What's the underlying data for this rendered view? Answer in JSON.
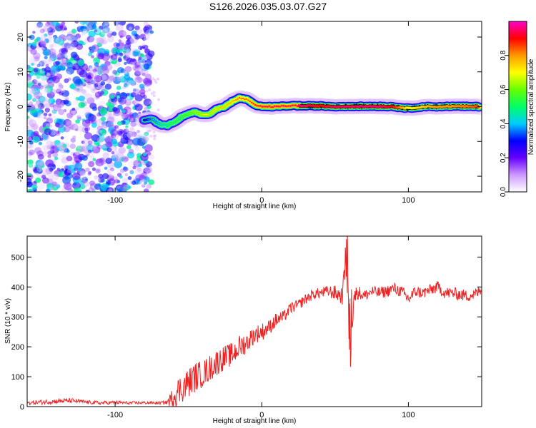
{
  "figure_title": "S126.2026.035.03.07.G27",
  "chart_data": [
    {
      "type": "heatmap",
      "name": "spectrogram",
      "title": "S126.2026.035.03.07.G27",
      "xlabel": "Height of straight line (km)",
      "ylabel": "Frequency (Hz)",
      "xlim": [
        -160,
        150
      ],
      "ylim": [
        -24.5,
        24.5
      ],
      "xticks": [
        -100,
        0,
        100
      ],
      "yticks": [
        -20,
        -10,
        0,
        10,
        20
      ],
      "colorbar": {
        "label": "Normalized spectral amplitude",
        "range": [
          0,
          1
        ],
        "ticks": [
          0.0,
          0.2,
          0.4,
          0.6,
          0.8
        ],
        "tick_labels": [
          "0.0",
          "0.2",
          "0.4",
          "0.6",
          "0.8"
        ],
        "colormap": [
          "#ffffff",
          "#cc99ff",
          "#6600ff",
          "#0000ff",
          "#00ccff",
          "#00ff66",
          "#66ff00",
          "#ffff00",
          "#ff9900",
          "#ff0000",
          "#ff00cc"
        ]
      },
      "noise_region": {
        "x": [
          -160,
          -75
        ],
        "freq": [
          -24.5,
          24.5
        ],
        "amplitude_range": [
          0.0,
          0.15
        ]
      },
      "ridge": {
        "x": [
          -80,
          -75,
          -70,
          -65,
          -60,
          -55,
          -50,
          -45,
          -40,
          -35,
          -30,
          -25,
          -20,
          -15,
          -10,
          -5,
          0,
          10,
          20,
          30,
          40,
          50,
          60,
          70,
          80,
          90,
          100,
          110,
          120,
          130,
          148
        ],
        "freq": [
          -4,
          -3.5,
          -5,
          -5.5,
          -4.5,
          -3,
          -2,
          -1.5,
          -2.5,
          -2,
          -0.5,
          0,
          1.5,
          2.5,
          2,
          0.5,
          0,
          0,
          0.3,
          0.2,
          0.2,
          0,
          0.1,
          0.1,
          0.1,
          0,
          -0.5,
          0,
          0,
          0.1,
          0
        ],
        "amplitude": [
          0.3,
          0.4,
          0.45,
          0.5,
          0.55,
          0.55,
          0.6,
          0.65,
          0.7,
          0.7,
          0.75,
          0.75,
          0.8,
          0.85,
          0.85,
          0.9,
          0.95,
          0.95,
          0.95,
          0.95,
          0.9,
          0.95,
          0.95,
          0.95,
          0.95,
          0.9,
          0.7,
          0.75,
          0.8,
          0.8,
          0.85
        ]
      }
    },
    {
      "type": "line",
      "name": "snr",
      "xlabel": "Height of straight line (km)",
      "ylabel": "SNR (10 * v/v)",
      "xlim": [
        -160,
        150
      ],
      "ylim": [
        0,
        570
      ],
      "xticks": [
        -100,
        0,
        100
      ],
      "yticks": [
        0,
        100,
        200,
        300,
        400,
        500
      ],
      "color": "#ee2222",
      "series": [
        {
          "name": "SNR",
          "x": [
            -160,
            -150,
            -140,
            -130,
            -120,
            -110,
            -100,
            -90,
            -80,
            -70,
            -65,
            -62,
            -60,
            -55,
            -50,
            -45,
            -40,
            -35,
            -30,
            -25,
            -20,
            -15,
            -10,
            -5,
            0,
            5,
            10,
            15,
            20,
            25,
            30,
            35,
            40,
            45,
            50,
            55,
            58,
            60,
            62,
            65,
            70,
            75,
            80,
            85,
            90,
            95,
            100,
            105,
            110,
            115,
            120,
            125,
            130,
            135,
            140,
            145,
            150
          ],
          "y": [
            12,
            15,
            18,
            20,
            15,
            12,
            14,
            12,
            13,
            12,
            14,
            20,
            40,
            60,
            80,
            100,
            110,
            130,
            150,
            165,
            175,
            200,
            215,
            240,
            250,
            265,
            290,
            300,
            330,
            340,
            360,
            375,
            380,
            385,
            380,
            370,
            560,
            190,
            350,
            385,
            370,
            385,
            380,
            385,
            395,
            385,
            360,
            385,
            380,
            390,
            400,
            380,
            380,
            375,
            370,
            375,
            390
          ],
          "noise_amplitude": [
            6,
            8,
            8,
            8,
            6,
            6,
            6,
            5,
            5,
            5,
            6,
            30,
            45,
            50,
            50,
            50,
            45,
            45,
            45,
            40,
            40,
            40,
            35,
            30,
            30,
            25,
            25,
            20,
            20,
            18,
            18,
            18,
            18,
            20,
            25,
            30,
            0,
            0,
            30,
            25,
            20,
            20,
            20,
            20,
            20,
            20,
            25,
            20,
            20,
            20,
            20,
            20,
            20,
            20,
            20,
            20,
            20
          ]
        }
      ]
    }
  ]
}
